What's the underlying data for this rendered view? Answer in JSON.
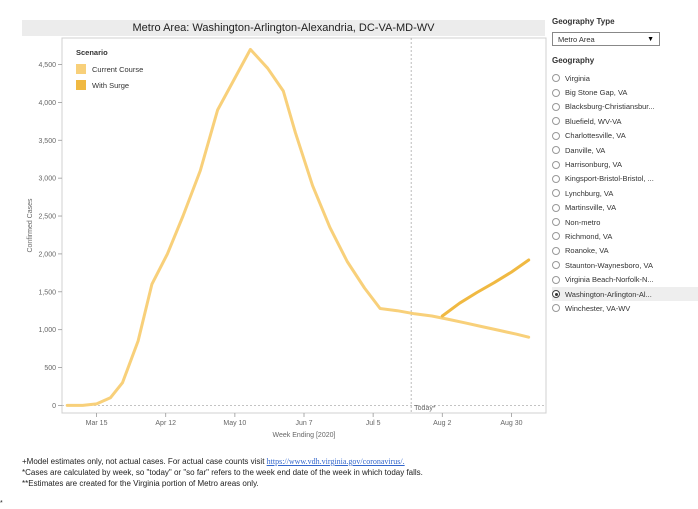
{
  "chart_data": {
    "type": "line",
    "title": "Metro Area: Washington-Arlington-Alexandria, DC-VA-MD-WV",
    "xlabel": "Week Ending [2020]",
    "ylabel": "Confirmed Cases",
    "x_tick_labels": [
      "Mar 15",
      "Apr 12",
      "May 10",
      "Jun 7",
      "Jul 5",
      "Aug 2",
      "Aug 30"
    ],
    "x_ticks_week": [
      2,
      6,
      10,
      14,
      18,
      22,
      26
    ],
    "ylim": [
      -100,
      4850
    ],
    "y_ticks": [
      0,
      500,
      1000,
      1500,
      2000,
      2500,
      3000,
      3500,
      4000,
      4500
    ],
    "y_tick_labels": [
      "0",
      "500",
      "1,000",
      "1,500",
      "2,000",
      "2,500",
      "3,000",
      "3,500",
      "4,000",
      "4,500"
    ],
    "today_week": 20.2,
    "today_label": "Today*",
    "legend_title": "Scenario",
    "series": [
      {
        "name": "Current Course",
        "color": "#f8d07a",
        "points": [
          [
            0.3,
            0
          ],
          [
            1.2,
            0
          ],
          [
            2,
            20
          ],
          [
            2.8,
            100
          ],
          [
            3.5,
            300
          ],
          [
            4.4,
            850
          ],
          [
            5.2,
            1600
          ],
          [
            6.1,
            2000
          ],
          [
            7,
            2500
          ],
          [
            8,
            3100
          ],
          [
            9,
            3900
          ],
          [
            10.9,
            4700
          ],
          [
            11.9,
            4450
          ],
          [
            12.8,
            4150
          ],
          [
            13.5,
            3600
          ],
          [
            14.5,
            2900
          ],
          [
            15.5,
            2350
          ],
          [
            16.5,
            1900
          ],
          [
            17.5,
            1550
          ],
          [
            18.4,
            1280
          ],
          [
            19.4,
            1250
          ],
          [
            20.4,
            1210
          ],
          [
            21.4,
            1180
          ],
          [
            22.3,
            1140
          ],
          [
            23.3,
            1090
          ],
          [
            24.3,
            1040
          ],
          [
            25.3,
            990
          ],
          [
            26.3,
            940
          ],
          [
            27,
            900
          ]
        ]
      },
      {
        "name": "With Surge",
        "color": "#f0b942",
        "points": [
          [
            22,
            1180
          ],
          [
            23,
            1350
          ],
          [
            24,
            1490
          ],
          [
            25,
            1620
          ],
          [
            26,
            1760
          ],
          [
            27,
            1920
          ]
        ]
      }
    ]
  },
  "panel": {
    "geography_type_label": "Geography Type",
    "geography_type_value": "Metro Area",
    "geography_label": "Geography",
    "options": [
      "Virginia",
      "Big Stone Gap, VA",
      "Blacksburg-Christiansbur...",
      "Bluefield, WV-VA",
      "Charlottesville, VA",
      "Danville, VA",
      "Harrisonburg, VA",
      "Kingsport-Bristol-Bristol, ...",
      "Lynchburg, VA",
      "Martinsville, VA",
      "Non-metro",
      "Richmond, VA",
      "Roanoke, VA",
      "Staunton-Waynesboro, VA",
      "Virginia Beach-Norfolk-N...",
      "Washington-Arlington-Al...",
      "Winchester, VA-WV"
    ],
    "selected_index": 15
  },
  "footnotes": {
    "line1_text": "+Model estimates only, not actual cases. For actual case counts visit ",
    "line1_link": "https://www.vdh.virginia.gov/coronavirus/.",
    "line2": "*Cases are calculated by week, so \"today\" or \"so far\" refers to the week end date of the week in which today falls.",
    "line3": "**Estimates are created for the Virginia portion of Metro areas only.",
    "stray_mark": "*"
  }
}
